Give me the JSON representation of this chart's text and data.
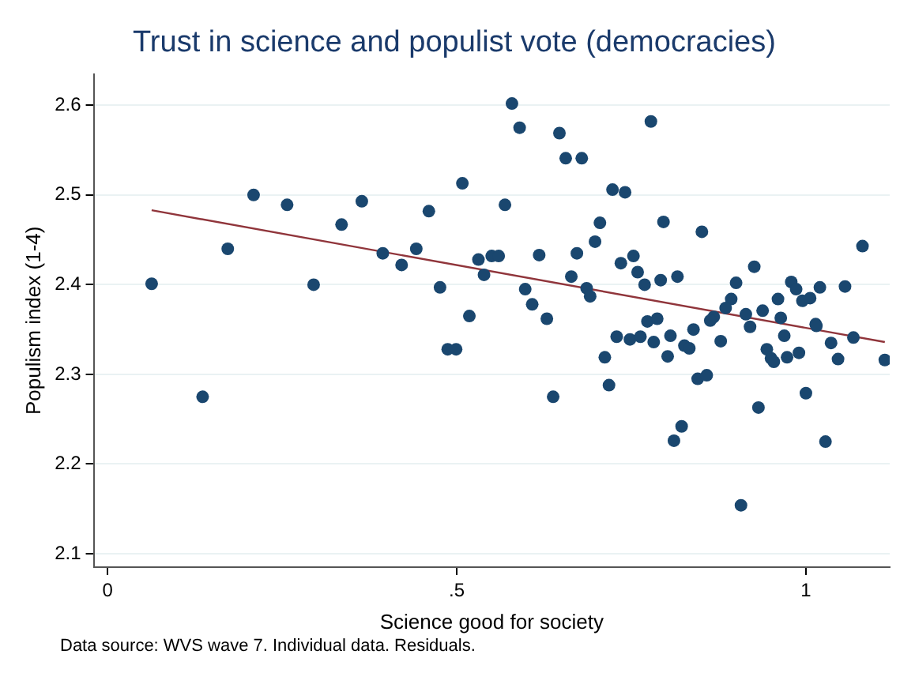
{
  "chart_data": {
    "type": "scatter",
    "title": "Trust in science and populist vote (democracies)",
    "xlabel": "Science good for society",
    "ylabel": "Populism index (1-4)",
    "annotations": [
      "Data source: WVS wave 7. Individual data. Residuals."
    ],
    "xlim": [
      -0.02,
      1.12
    ],
    "xticks": [
      0,
      {
        "value": 0.5,
        "label": ".5"
      },
      1
    ],
    "ylim": [
      2.085,
      2.635
    ],
    "yticks": [
      2.1,
      2.2,
      2.3,
      2.4,
      2.5,
      2.6
    ],
    "grid": "y",
    "series": [
      {
        "color": "#1a476f",
        "marker": "circle",
        "x": [
          0.063,
          0.136,
          0.172,
          0.209,
          0.257,
          0.295,
          0.335,
          0.364,
          0.394,
          0.421,
          0.442,
          0.46,
          0.476,
          0.508,
          0.487,
          0.499,
          0.518,
          0.531,
          0.539,
          0.579,
          0.59,
          0.647,
          0.656,
          0.679,
          0.778,
          0.569,
          0.723,
          0.741,
          0.796,
          0.851,
          1.081,
          0.705,
          0.698,
          0.55,
          0.56,
          0.618,
          0.672,
          0.664,
          0.735,
          0.753,
          0.759,
          0.769,
          0.792,
          0.816,
          0.686,
          0.691,
          0.598,
          0.608,
          0.629,
          0.926,
          0.9,
          0.893,
          0.885,
          0.868,
          0.863,
          0.979,
          0.986,
          0.995,
          1.006,
          1.02,
          1.056,
          0.914,
          0.938,
          0.96,
          0.964,
          1.014,
          0.773,
          0.787,
          0.712,
          0.718,
          0.638,
          0.729,
          0.748,
          0.763,
          0.782,
          0.806,
          0.802,
          0.826,
          0.833,
          0.839,
          0.878,
          0.845,
          0.858,
          0.822,
          0.811,
          0.907,
          0.932,
          0.92,
          0.944,
          0.95,
          0.954,
          0.969,
          0.973,
          0.99,
          1.0,
          1.015,
          1.028,
          1.036,
          1.046,
          1.068,
          1.113
        ],
        "values": [
          2.401,
          2.275,
          2.44,
          2.5,
          2.489,
          2.4,
          2.467,
          2.493,
          2.435,
          2.422,
          2.44,
          2.482,
          2.397,
          2.513,
          2.328,
          2.328,
          2.365,
          2.428,
          2.411,
          2.602,
          2.575,
          2.569,
          2.541,
          2.541,
          2.582,
          2.489,
          2.506,
          2.503,
          2.47,
          2.459,
          2.443,
          2.469,
          2.448,
          2.432,
          2.432,
          2.433,
          2.435,
          2.409,
          2.424,
          2.432,
          2.414,
          2.4,
          2.405,
          2.409,
          2.396,
          2.387,
          2.395,
          2.378,
          2.362,
          2.42,
          2.402,
          2.384,
          2.374,
          2.364,
          2.36,
          2.403,
          2.395,
          2.382,
          2.385,
          2.397,
          2.398,
          2.367,
          2.371,
          2.384,
          2.363,
          2.356,
          2.359,
          2.362,
          2.319,
          2.288,
          2.275,
          2.342,
          2.339,
          2.342,
          2.336,
          2.343,
          2.32,
          2.332,
          2.329,
          2.35,
          2.337,
          2.295,
          2.299,
          2.242,
          2.226,
          2.154,
          2.263,
          2.353,
          2.328,
          2.318,
          2.314,
          2.343,
          2.319,
          2.324,
          2.279,
          2.354,
          2.225,
          2.335,
          2.317,
          2.341,
          2.316
        ]
      },
      {
        "type": "line",
        "color": "#90353b",
        "line_style": "solid",
        "x": [
          0.063,
          1.113
        ],
        "values": [
          2.483,
          2.336
        ]
      }
    ]
  }
}
